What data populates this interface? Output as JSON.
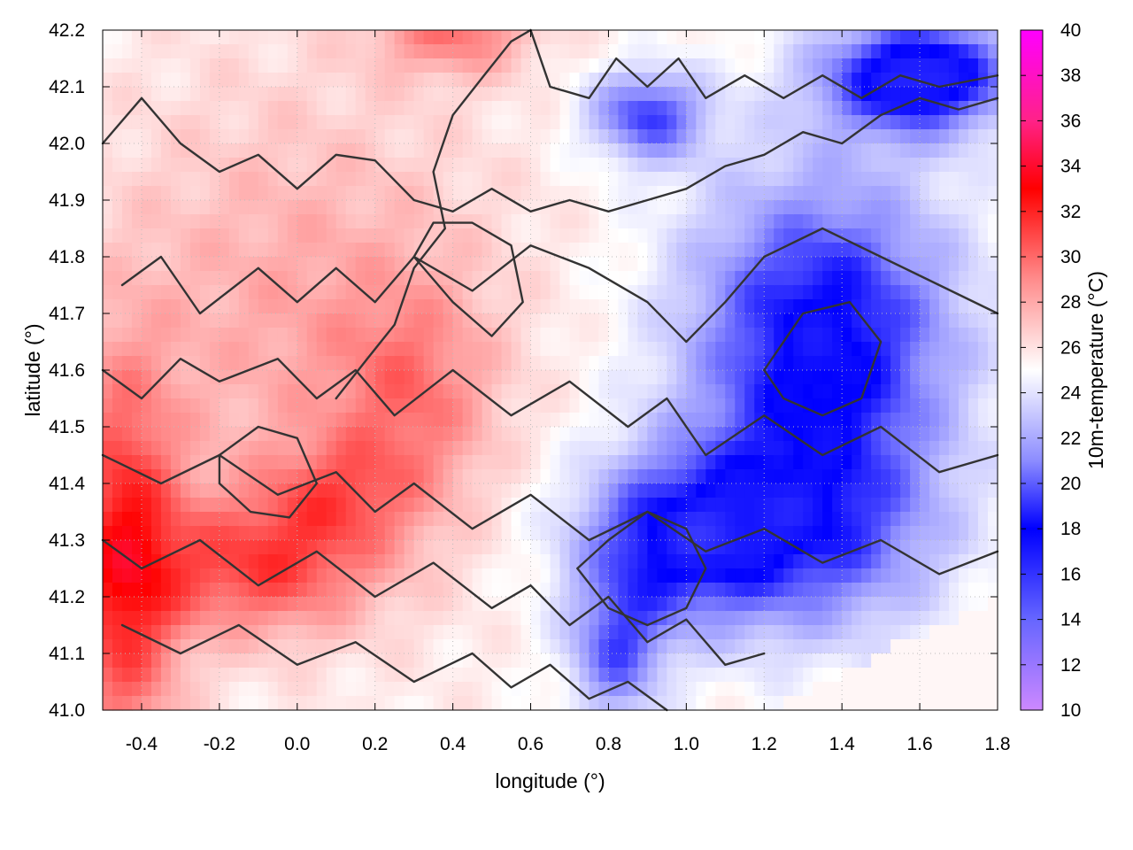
{
  "chart_data": {
    "type": "heatmap",
    "xlabel": "longitude (°)",
    "ylabel": "latitude (°)",
    "colorbar_label": "10m-temperature (°C)",
    "xlim": [
      -0.5,
      1.8
    ],
    "ylim": [
      41.0,
      42.2
    ],
    "x_ticks": [
      "-0.4",
      "-0.2",
      "0.0",
      "0.2",
      "0.4",
      "0.6",
      "0.8",
      "1.0",
      "1.2",
      "1.4",
      "1.6",
      "1.8"
    ],
    "y_ticks": [
      "41.0",
      "41.1",
      "41.2",
      "41.3",
      "41.4",
      "41.5",
      "41.6",
      "41.7",
      "41.8",
      "41.9",
      "42.0",
      "42.1",
      "42.2"
    ],
    "colorbar_range": [
      10,
      40
    ],
    "colorbar_ticks": [
      "10",
      "12",
      "14",
      "16",
      "18",
      "20",
      "22",
      "24",
      "26",
      "28",
      "30",
      "32",
      "34",
      "36",
      "38",
      "40"
    ],
    "colorscale": [
      {
        "value": 10,
        "color": "#cc88ff"
      },
      {
        "value": 14,
        "color": "#6666ff"
      },
      {
        "value": 18,
        "color": "#0000ff"
      },
      {
        "value": 21,
        "color": "#8c8cff"
      },
      {
        "value": 25,
        "color": "#ffffff"
      },
      {
        "value": 29,
        "color": "#ff8c8c"
      },
      {
        "value": 33,
        "color": "#ff0000"
      },
      {
        "value": 36,
        "color": "#ff2288"
      },
      {
        "value": 40,
        "color": "#ff00ff"
      }
    ],
    "grid": true,
    "temperature_field": {
      "base_c": 25.5,
      "features": [
        {
          "lon": -0.45,
          "lat": 41.25,
          "delta_c": 6.5,
          "sx": 0.15,
          "sy": 0.35
        },
        {
          "lon": -0.1,
          "lat": 41.25,
          "delta_c": 5,
          "sx": 0.3,
          "sy": 0.12
        },
        {
          "lon": 0.1,
          "lat": 41.38,
          "delta_c": 3,
          "sx": 0.2,
          "sy": 0.1
        },
        {
          "lon": 0.3,
          "lat": 41.55,
          "delta_c": 3,
          "sx": 0.2,
          "sy": 0.2
        },
        {
          "lon": 0.0,
          "lat": 41.7,
          "delta_c": 2.5,
          "sx": 0.5,
          "sy": 0.4
        },
        {
          "lon": 0.4,
          "lat": 42.2,
          "delta_c": 4,
          "sx": 0.2,
          "sy": 0.08
        },
        {
          "lon": 1.35,
          "lat": 41.65,
          "delta_c": -8,
          "sx": 0.35,
          "sy": 0.3
        },
        {
          "lon": 1.6,
          "lat": 42.12,
          "delta_c": -9,
          "sx": 0.25,
          "sy": 0.1
        },
        {
          "lon": 0.9,
          "lat": 42.05,
          "delta_c": -6,
          "sx": 0.15,
          "sy": 0.08
        },
        {
          "lon": 0.95,
          "lat": 41.3,
          "delta_c": -6,
          "sx": 0.25,
          "sy": 0.15
        },
        {
          "lon": 0.82,
          "lat": 41.1,
          "delta_c": -5,
          "sx": 0.12,
          "sy": 0.12
        },
        {
          "lon": 1.3,
          "lat": 41.3,
          "delta_c": -5,
          "sx": 0.35,
          "sy": 0.18
        }
      ],
      "flat_sea_region": {
        "from_lon": 1.2,
        "lat_at_from": 41.0,
        "to_lon": 1.8,
        "lat_at_to": 41.2,
        "value_c": 25.3
      }
    },
    "contours": [
      [
        [
          -0.5,
          42.0
        ],
        [
          -0.4,
          42.08
        ],
        [
          -0.3,
          42.0
        ],
        [
          -0.2,
          41.95
        ],
        [
          -0.1,
          41.98
        ],
        [
          0.0,
          41.92
        ],
        [
          0.1,
          41.98
        ],
        [
          0.2,
          41.97
        ],
        [
          0.3,
          41.9
        ],
        [
          0.4,
          41.88
        ],
        [
          0.5,
          41.92
        ],
        [
          0.6,
          41.88
        ],
        [
          0.7,
          41.9
        ],
        [
          0.8,
          41.88
        ],
        [
          0.9,
          41.9
        ],
        [
          1.0,
          41.92
        ],
        [
          1.1,
          41.96
        ],
        [
          1.2,
          41.98
        ],
        [
          1.3,
          42.02
        ],
        [
          1.4,
          42.0
        ],
        [
          1.5,
          42.05
        ],
        [
          1.6,
          42.08
        ],
        [
          1.7,
          42.06
        ],
        [
          1.8,
          42.08
        ]
      ],
      [
        [
          -0.45,
          41.75
        ],
        [
          -0.35,
          41.8
        ],
        [
          -0.25,
          41.7
        ],
        [
          -0.1,
          41.78
        ],
        [
          0.0,
          41.72
        ],
        [
          0.1,
          41.78
        ],
        [
          0.2,
          41.72
        ],
        [
          0.3,
          41.8
        ],
        [
          0.45,
          41.74
        ],
        [
          0.6,
          41.82
        ],
        [
          0.75,
          41.78
        ],
        [
          0.9,
          41.72
        ],
        [
          1.0,
          41.65
        ],
        [
          1.1,
          41.72
        ],
        [
          1.2,
          41.8
        ],
        [
          1.35,
          41.85
        ],
        [
          1.5,
          41.8
        ],
        [
          1.65,
          41.75
        ],
        [
          1.8,
          41.7
        ]
      ],
      [
        [
          -0.5,
          41.6
        ],
        [
          -0.4,
          41.55
        ],
        [
          -0.3,
          41.62
        ],
        [
          -0.2,
          41.58
        ],
        [
          -0.05,
          41.62
        ],
        [
          0.05,
          41.55
        ],
        [
          0.15,
          41.6
        ],
        [
          0.25,
          41.52
        ],
        [
          0.4,
          41.6
        ],
        [
          0.55,
          41.52
        ],
        [
          0.7,
          41.58
        ],
        [
          0.85,
          41.5
        ],
        [
          0.95,
          41.55
        ],
        [
          1.05,
          41.45
        ],
        [
          1.2,
          41.52
        ],
        [
          1.35,
          41.45
        ],
        [
          1.5,
          41.5
        ],
        [
          1.65,
          41.42
        ],
        [
          1.8,
          41.45
        ]
      ],
      [
        [
          -0.5,
          41.45
        ],
        [
          -0.35,
          41.4
        ],
        [
          -0.2,
          41.45
        ],
        [
          -0.05,
          41.38
        ],
        [
          0.1,
          41.42
        ],
        [
          0.2,
          41.35
        ],
        [
          0.3,
          41.4
        ],
        [
          0.45,
          41.32
        ],
        [
          0.6,
          41.38
        ],
        [
          0.75,
          41.3
        ],
        [
          0.9,
          41.35
        ],
        [
          1.05,
          41.28
        ],
        [
          1.2,
          41.32
        ],
        [
          1.35,
          41.26
        ],
        [
          1.5,
          41.3
        ],
        [
          1.65,
          41.24
        ],
        [
          1.8,
          41.28
        ]
      ],
      [
        [
          -0.5,
          41.3
        ],
        [
          -0.4,
          41.25
        ],
        [
          -0.25,
          41.3
        ],
        [
          -0.1,
          41.22
        ],
        [
          0.05,
          41.28
        ],
        [
          0.2,
          41.2
        ],
        [
          0.35,
          41.26
        ],
        [
          0.5,
          41.18
        ],
        [
          0.6,
          41.22
        ],
        [
          0.7,
          41.15
        ],
        [
          0.8,
          41.2
        ],
        [
          0.9,
          41.12
        ],
        [
          1.0,
          41.16
        ],
        [
          1.1,
          41.08
        ],
        [
          1.2,
          41.1
        ]
      ],
      [
        [
          -0.45,
          41.15
        ],
        [
          -0.3,
          41.1
        ],
        [
          -0.15,
          41.15
        ],
        [
          0.0,
          41.08
        ],
        [
          0.15,
          41.12
        ],
        [
          0.3,
          41.05
        ],
        [
          0.45,
          41.1
        ],
        [
          0.55,
          41.04
        ],
        [
          0.65,
          41.08
        ],
        [
          0.75,
          41.02
        ],
        [
          0.85,
          41.05
        ],
        [
          0.95,
          41.0
        ]
      ],
      [
        [
          0.6,
          42.2
        ],
        [
          0.65,
          42.1
        ],
        [
          0.75,
          42.08
        ],
        [
          0.82,
          42.15
        ],
        [
          0.9,
          42.1
        ],
        [
          0.98,
          42.15
        ],
        [
          1.05,
          42.08
        ],
        [
          1.15,
          42.12
        ],
        [
          1.25,
          42.08
        ],
        [
          1.35,
          42.12
        ],
        [
          1.45,
          42.08
        ],
        [
          1.55,
          42.12
        ],
        [
          1.65,
          42.1
        ],
        [
          1.8,
          42.12
        ]
      ],
      [
        [
          0.1,
          41.55
        ],
        [
          0.18,
          41.62
        ],
        [
          0.25,
          41.68
        ],
        [
          0.3,
          41.78
        ],
        [
          0.38,
          41.85
        ],
        [
          0.35,
          41.95
        ],
        [
          0.4,
          42.05
        ],
        [
          0.48,
          42.12
        ],
        [
          0.55,
          42.18
        ],
        [
          0.6,
          42.2
        ]
      ],
      [
        [
          0.72,
          41.25
        ],
        [
          0.8,
          41.3
        ],
        [
          0.9,
          41.35
        ],
        [
          1.0,
          41.32
        ],
        [
          1.05,
          41.25
        ],
        [
          1.0,
          41.18
        ],
        [
          0.9,
          41.15
        ],
        [
          0.8,
          41.18
        ],
        [
          0.72,
          41.25
        ]
      ],
      [
        [
          1.2,
          41.6
        ],
        [
          1.3,
          41.7
        ],
        [
          1.42,
          41.72
        ],
        [
          1.5,
          41.65
        ],
        [
          1.45,
          41.55
        ],
        [
          1.35,
          41.52
        ],
        [
          1.25,
          41.55
        ],
        [
          1.2,
          41.6
        ]
      ],
      [
        [
          -0.2,
          41.45
        ],
        [
          -0.1,
          41.5
        ],
        [
          0.0,
          41.48
        ],
        [
          0.05,
          41.4
        ],
        [
          -0.02,
          41.34
        ],
        [
          -0.12,
          41.35
        ],
        [
          -0.2,
          41.4
        ],
        [
          -0.2,
          41.45
        ]
      ],
      [
        [
          0.3,
          41.8
        ],
        [
          0.4,
          41.72
        ],
        [
          0.5,
          41.66
        ],
        [
          0.58,
          41.72
        ],
        [
          0.55,
          41.82
        ],
        [
          0.45,
          41.86
        ],
        [
          0.35,
          41.86
        ],
        [
          0.3,
          41.8
        ]
      ]
    ]
  }
}
